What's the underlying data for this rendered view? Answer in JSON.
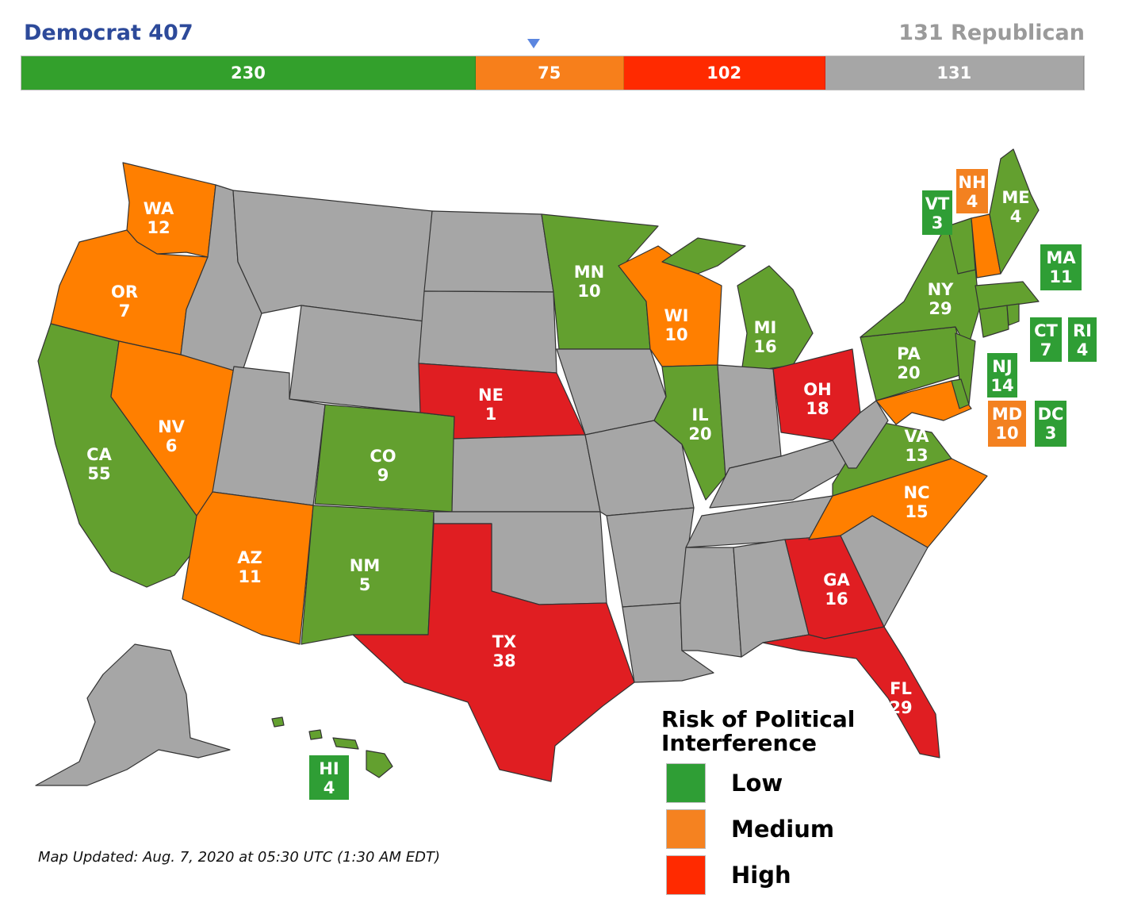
{
  "header": {
    "left": "Democrat 407",
    "right": "131 Republican"
  },
  "tally": {
    "marker_fraction": 0.5,
    "segments": [
      {
        "value": 230,
        "label": "230",
        "color": "#33a02c"
      },
      {
        "value": 75,
        "label": "75",
        "color": "#f77f1b"
      },
      {
        "value": 102,
        "label": "102",
        "color": "#ff2a00"
      },
      {
        "value": 131,
        "label": "131",
        "color": "#a6a6a6"
      }
    ]
  },
  "colors": {
    "low": "#63a02f",
    "medium": "#ff7f00",
    "high": "#e01e22",
    "none": "#a6a6a6",
    "border": "#333333",
    "box_low": "#2f9e35",
    "box_medium": "#f38120"
  },
  "states": [
    {
      "abbr": "WA",
      "ev": "12",
      "risk": "medium"
    },
    {
      "abbr": "OR",
      "ev": "7",
      "risk": "medium"
    },
    {
      "abbr": "CA",
      "ev": "55",
      "risk": "low"
    },
    {
      "abbr": "NV",
      "ev": "6",
      "risk": "medium"
    },
    {
      "abbr": "AZ",
      "ev": "11",
      "risk": "medium"
    },
    {
      "abbr": "CO",
      "ev": "9",
      "risk": "low"
    },
    {
      "abbr": "NM",
      "ev": "5",
      "risk": "low"
    },
    {
      "abbr": "NE",
      "ev": "1",
      "risk": "high"
    },
    {
      "abbr": "TX",
      "ev": "38",
      "risk": "high"
    },
    {
      "abbr": "MN",
      "ev": "10",
      "risk": "low"
    },
    {
      "abbr": "WI",
      "ev": "10",
      "risk": "medium"
    },
    {
      "abbr": "IL",
      "ev": "20",
      "risk": "low"
    },
    {
      "abbr": "MI",
      "ev": "16",
      "risk": "low"
    },
    {
      "abbr": "OH",
      "ev": "18",
      "risk": "high"
    },
    {
      "abbr": "PA",
      "ev": "20",
      "risk": "low"
    },
    {
      "abbr": "NY",
      "ev": "29",
      "risk": "low"
    },
    {
      "abbr": "VA",
      "ev": "13",
      "risk": "low"
    },
    {
      "abbr": "NC",
      "ev": "15",
      "risk": "medium"
    },
    {
      "abbr": "GA",
      "ev": "16",
      "risk": "high"
    },
    {
      "abbr": "FL",
      "ev": "29",
      "risk": "high"
    },
    {
      "abbr": "ME",
      "ev": "4",
      "risk": "low"
    },
    {
      "abbr": "VT",
      "ev": "3",
      "risk": "low"
    },
    {
      "abbr": "NH",
      "ev": "4",
      "risk": "medium"
    },
    {
      "abbr": "MA",
      "ev": "11",
      "risk": "low"
    },
    {
      "abbr": "CT",
      "ev": "7",
      "risk": "low"
    },
    {
      "abbr": "RI",
      "ev": "4",
      "risk": "low"
    },
    {
      "abbr": "NJ",
      "ev": "14",
      "risk": "low"
    },
    {
      "abbr": "MD",
      "ev": "10",
      "risk": "medium"
    },
    {
      "abbr": "DC",
      "ev": "3",
      "risk": "low"
    },
    {
      "abbr": "HI",
      "ev": "4",
      "risk": "low"
    }
  ],
  "legend": {
    "title": "Risk of Political Interference",
    "items": [
      {
        "label": "Low",
        "color": "#2f9e35"
      },
      {
        "label": "Medium",
        "color": "#f58220"
      },
      {
        "label": "High",
        "color": "#ff2a00"
      }
    ]
  },
  "footnote": "Map Updated: Aug. 7, 2020 at 05:30 UTC (1:30 AM EDT)"
}
